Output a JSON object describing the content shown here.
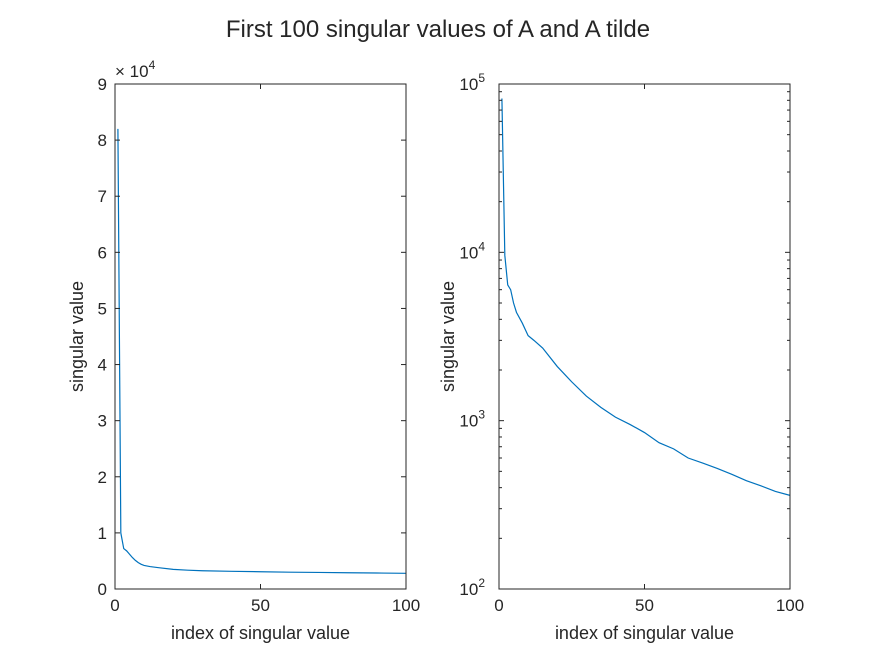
{
  "figure_title": "First 100 singular values of A and A tilde",
  "chart_data": [
    {
      "type": "line",
      "scale": "linear",
      "xlabel": "index of singular value",
      "ylabel": "singular value",
      "xlim": [
        0,
        100
      ],
      "ylim": [
        0,
        90000
      ],
      "x_ticks": [
        0,
        50,
        100
      ],
      "x_tick_labels": [
        "0",
        "50",
        "100"
      ],
      "y_ticks": [
        0,
        10000,
        20000,
        30000,
        40000,
        50000,
        60000,
        70000,
        80000,
        90000
      ],
      "y_tick_labels": [
        "0",
        "1",
        "2",
        "3",
        "4",
        "5",
        "6",
        "7",
        "8",
        "9"
      ],
      "exponent_label": "× 10",
      "exponent_power": "4",
      "grid": false,
      "color": "#0072BD",
      "series": [
        {
          "x": [
            1,
            2,
            3,
            4,
            5,
            6,
            7,
            8,
            9,
            10,
            12,
            15,
            20,
            25,
            30,
            40,
            50,
            60,
            70,
            80,
            90,
            100
          ],
          "y": [
            82000,
            10000,
            7200,
            6800,
            6200,
            5600,
            5100,
            4700,
            4400,
            4200,
            4000,
            3800,
            3500,
            3350,
            3250,
            3150,
            3080,
            3000,
            2950,
            2900,
            2850,
            2800
          ]
        }
      ]
    },
    {
      "type": "line",
      "scale": "log",
      "xlabel": "index of singular value",
      "ylabel": "singular value",
      "xlim": [
        0,
        100
      ],
      "ylim": [
        100,
        100000
      ],
      "x_ticks": [
        0,
        50,
        100
      ],
      "x_tick_labels": [
        "0",
        "50",
        "100"
      ],
      "y_ticks": [
        100,
        1000,
        10000,
        100000
      ],
      "y_tick_base": "10",
      "y_tick_powers": [
        "2",
        "3",
        "4",
        "5"
      ],
      "grid": false,
      "color": "#0072BD",
      "series": [
        {
          "x": [
            1,
            2,
            3,
            4,
            5,
            6,
            8,
            10,
            12,
            15,
            20,
            25,
            30,
            35,
            40,
            45,
            50,
            55,
            60,
            65,
            70,
            75,
            80,
            85,
            90,
            95,
            100
          ],
          "y": [
            82000,
            9600,
            6400,
            6000,
            5000,
            4400,
            3800,
            3200,
            3000,
            2700,
            2100,
            1700,
            1400,
            1200,
            1050,
            950,
            850,
            740,
            680,
            600,
            560,
            520,
            480,
            440,
            410,
            380,
            360
          ]
        }
      ]
    }
  ]
}
